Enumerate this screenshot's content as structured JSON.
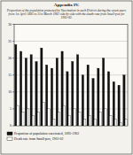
{
  "chart_data": {
    "type": "bar",
    "title": "Appendix IV.",
    "subtitle": "Proportion of the population protected by Vaccination in each District during the seven years from 1st April 1895 to 31st March 1902 side by side with the death rate from Small-pox for 1901-02.",
    "categories": [
      null,
      null,
      null,
      null,
      null,
      null,
      null,
      null,
      null,
      null,
      null,
      null,
      null,
      null,
      null,
      null,
      null,
      null,
      null,
      null,
      null,
      null
    ],
    "series": [
      {
        "name": "Proportion of population vaccinated, 1895-1902",
        "color": "#111111",
        "values": [
          24,
          22,
          20,
          21,
          19,
          23,
          18,
          17,
          20,
          22,
          16,
          19,
          21,
          15,
          18,
          14,
          17,
          20,
          16,
          13,
          12,
          15
        ]
      },
      {
        "name": "Death rate from Small-pox, 1901-02",
        "color": "#ffffff",
        "values": [
          6,
          4,
          5,
          3,
          4,
          7,
          5,
          2,
          4,
          6,
          3,
          5,
          4,
          2,
          3,
          2,
          4,
          5,
          3,
          2,
          1,
          2
        ]
      }
    ],
    "ylim": [
      0,
      30
    ],
    "yticks": [
      0,
      5,
      10,
      15,
      20,
      25,
      30
    ],
    "grid": true
  }
}
